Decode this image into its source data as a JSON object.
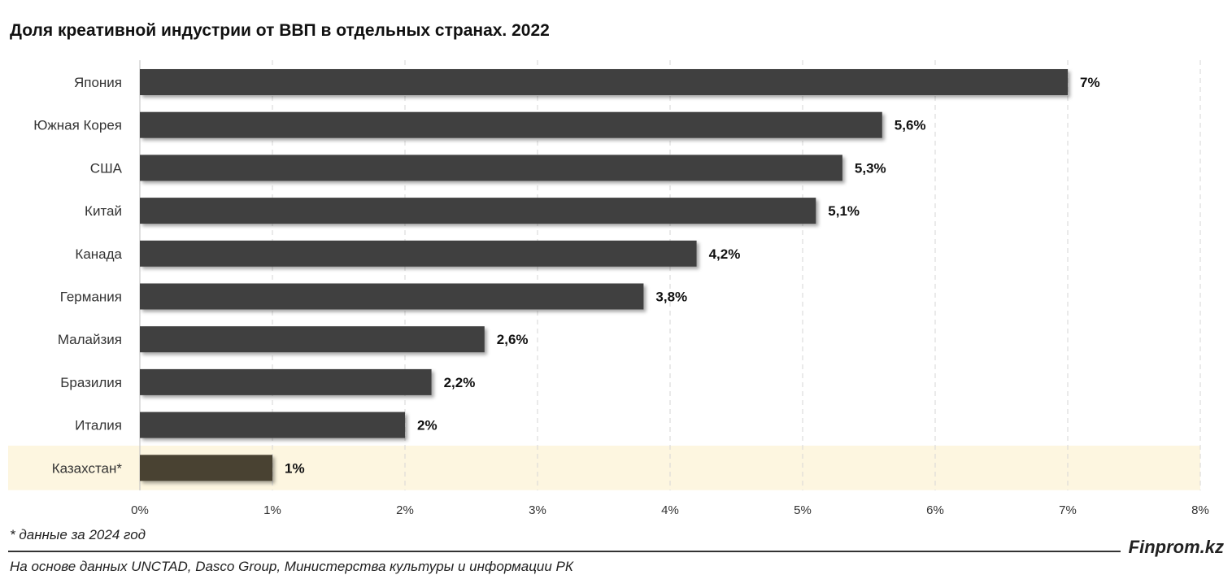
{
  "chart_data": {
    "type": "bar",
    "orientation": "horizontal",
    "title": "Доля креативной индустрии от ВВП в отдельных странах. 2022",
    "categories": [
      "Япония",
      "Южная Корея",
      "США",
      "Китай",
      "Канада",
      "Германия",
      "Малайзия",
      "Бразилия",
      "Италия",
      "Казахстан*"
    ],
    "values": [
      7,
      5.6,
      5.3,
      5.1,
      4.2,
      3.8,
      2.6,
      2.2,
      2,
      1
    ],
    "data_labels": [
      "7%",
      "5,6%",
      "5,3%",
      "5,1%",
      "4,2%",
      "3,8%",
      "2,6%",
      "2,2%",
      "2%",
      "1%"
    ],
    "xlim": [
      0,
      8
    ],
    "x_ticks": [
      "0%",
      "1%",
      "2%",
      "3%",
      "4%",
      "5%",
      "6%",
      "7%",
      "8%"
    ],
    "grid": "vertical dashed",
    "highlighted_category": "Казахстан*",
    "colors": {
      "bar": "#404040",
      "highlight_bar": "#4a4233",
      "highlight_band": "#fdf6e0",
      "grid": "#d6d6d6"
    }
  },
  "footnote": "* данные за 2024 год",
  "source": "На основе данных UNCTAD, Dasco Group, Министерства культуры и информации РК",
  "brand": "Finprom.kz"
}
